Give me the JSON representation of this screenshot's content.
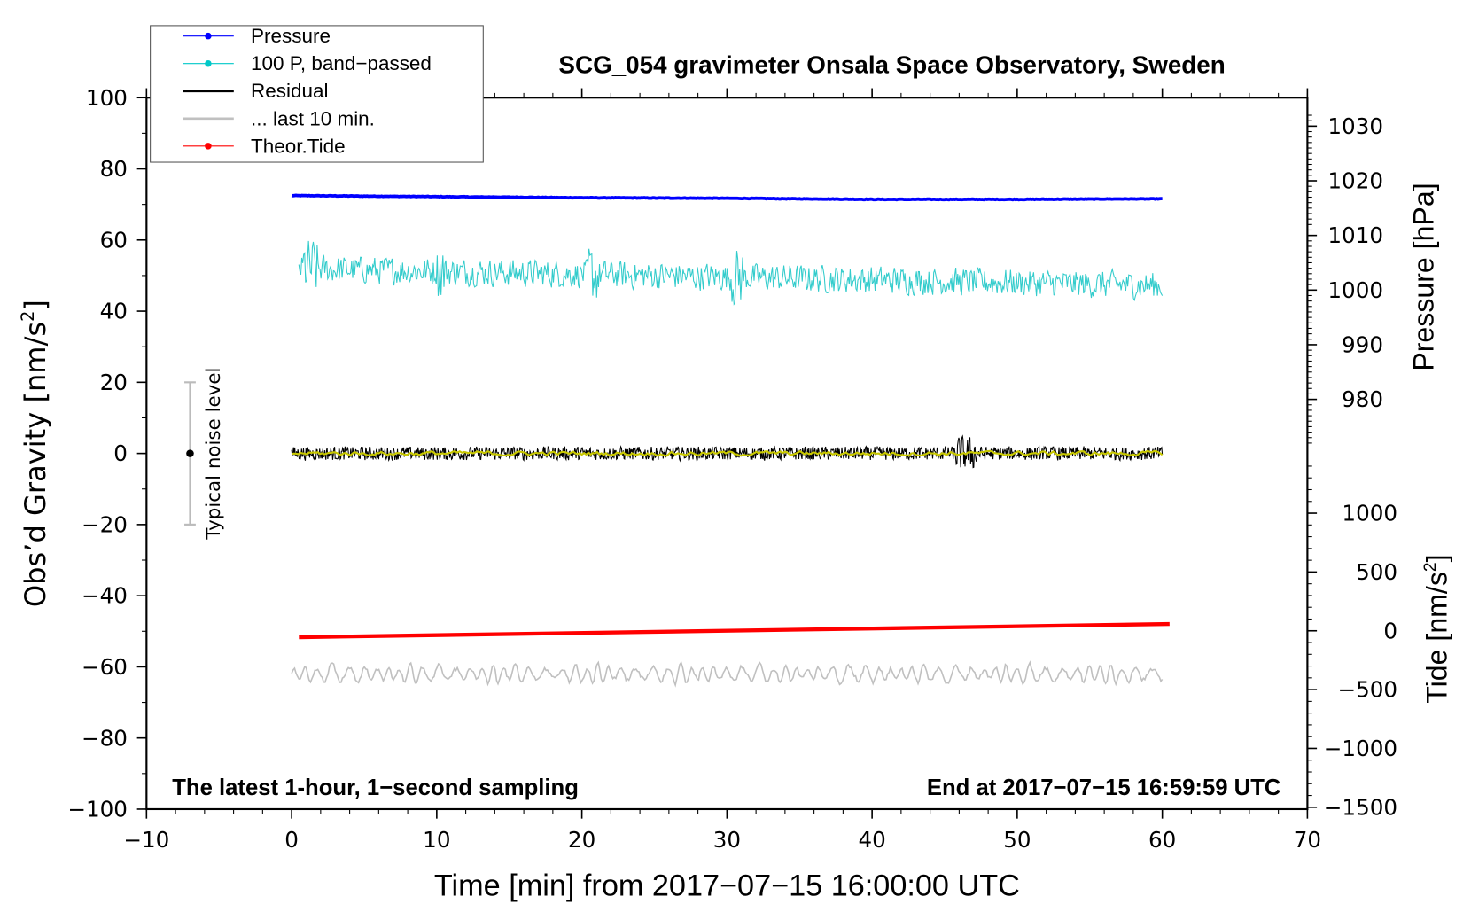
{
  "chart_data": {
    "type": "line",
    "title": "SCG_054 gravimeter Onsala Space Observatory, Sweden",
    "xlabel": "Time [min] from 2017−07−15 16:00:00 UTC",
    "ylabel_left": "Obs’d Gravity [nm/s",
    "ylabel_left_sup": "2",
    "ylabel_left_end": "]",
    "ylabel_right_pressure": "Pressure [hPa]",
    "ylabel_right_tide": "Tide [nm/s",
    "ylabel_right_tide_sup": "2",
    "ylabel_right_tide_end": "]",
    "xlim": [
      -10,
      70
    ],
    "ylim": [
      -100,
      100
    ],
    "pressure_ylim_ticks": [
      980,
      990,
      1000,
      1010,
      1020,
      1030
    ],
    "tide_ticks": [
      -1500,
      -1000,
      -500,
      0,
      500,
      1000
    ],
    "x_ticks": [
      -10,
      0,
      10,
      20,
      30,
      40,
      50,
      60,
      70
    ],
    "y_ticks": [
      -100,
      -80,
      -60,
      -40,
      -20,
      0,
      20,
      40,
      60,
      80,
      100
    ],
    "x_tick_labels": [
      "−10",
      "0",
      "10",
      "20",
      "30",
      "40",
      "50",
      "60",
      "70"
    ],
    "y_tick_labels": [
      "−100",
      "−80",
      "−60",
      "−40",
      "−20",
      "0",
      "20",
      "40",
      "60",
      "80",
      "100"
    ],
    "pressure_tick_labels": [
      "980",
      "990",
      "1000",
      "1010",
      "1020",
      "1030"
    ],
    "tide_tick_labels": [
      "−1500",
      "−1000",
      "−500",
      "0",
      "500",
      "1000"
    ],
    "annotation_left": "The latest 1-hour, 1−second sampling",
    "annotation_right": "End at 2017−07−15 16:59:59 UTC",
    "noise_label": "Typical noise level",
    "noise_level": {
      "x": -7,
      "range": [
        -20,
        20
      ],
      "center": 0
    },
    "legend": {
      "placement": "top-left",
      "entries": [
        {
          "label": "Pressure",
          "color": "#0000ff",
          "marker": true
        },
        {
          "label": "100 P, band−passed",
          "color": "#00c8c8",
          "marker": true
        },
        {
          "label": "Residual",
          "color": "#000000",
          "marker": false
        },
        {
          "label": "... last 10 min.",
          "color": "#c0c0c0",
          "marker": false
        },
        {
          "label": "Theor.Tide",
          "color": "#ff0000",
          "marker": true
        }
      ]
    },
    "series": [
      {
        "name": "Pressure",
        "axis": "pressure_hPa",
        "color": "#0000ff",
        "x": [
          0,
          10,
          20,
          30,
          40,
          50,
          60
        ],
        "values": [
          1017.3,
          1017.1,
          1016.9,
          1016.8,
          1016.6,
          1016.6,
          1016.7
        ]
      },
      {
        "name": "100 P, band-passed",
        "axis": "gravity",
        "color": "#33cccc",
        "x_range": [
          0.5,
          60
        ],
        "center": 49,
        "amplitude": 5
      },
      {
        "name": "Residual",
        "axis": "gravity",
        "color": "#000000",
        "x_range": [
          0,
          60
        ],
        "center": 0,
        "amplitude": 2.5
      },
      {
        "name": "Residual smoothed",
        "axis": "gravity",
        "color": "#c8c800",
        "x_range": [
          0,
          60
        ],
        "center": 0,
        "amplitude": 0.8
      },
      {
        "name": "... last 10 min.",
        "axis": "gravity",
        "color": "#c0c0c0",
        "x_range": [
          0,
          60
        ],
        "center": -62,
        "amplitude": 3
      },
      {
        "name": "Theor.Tide",
        "axis": "tide",
        "color": "#ff0000",
        "x": [
          0.5,
          60.5
        ],
        "values": [
          -55,
          58
        ]
      }
    ]
  }
}
